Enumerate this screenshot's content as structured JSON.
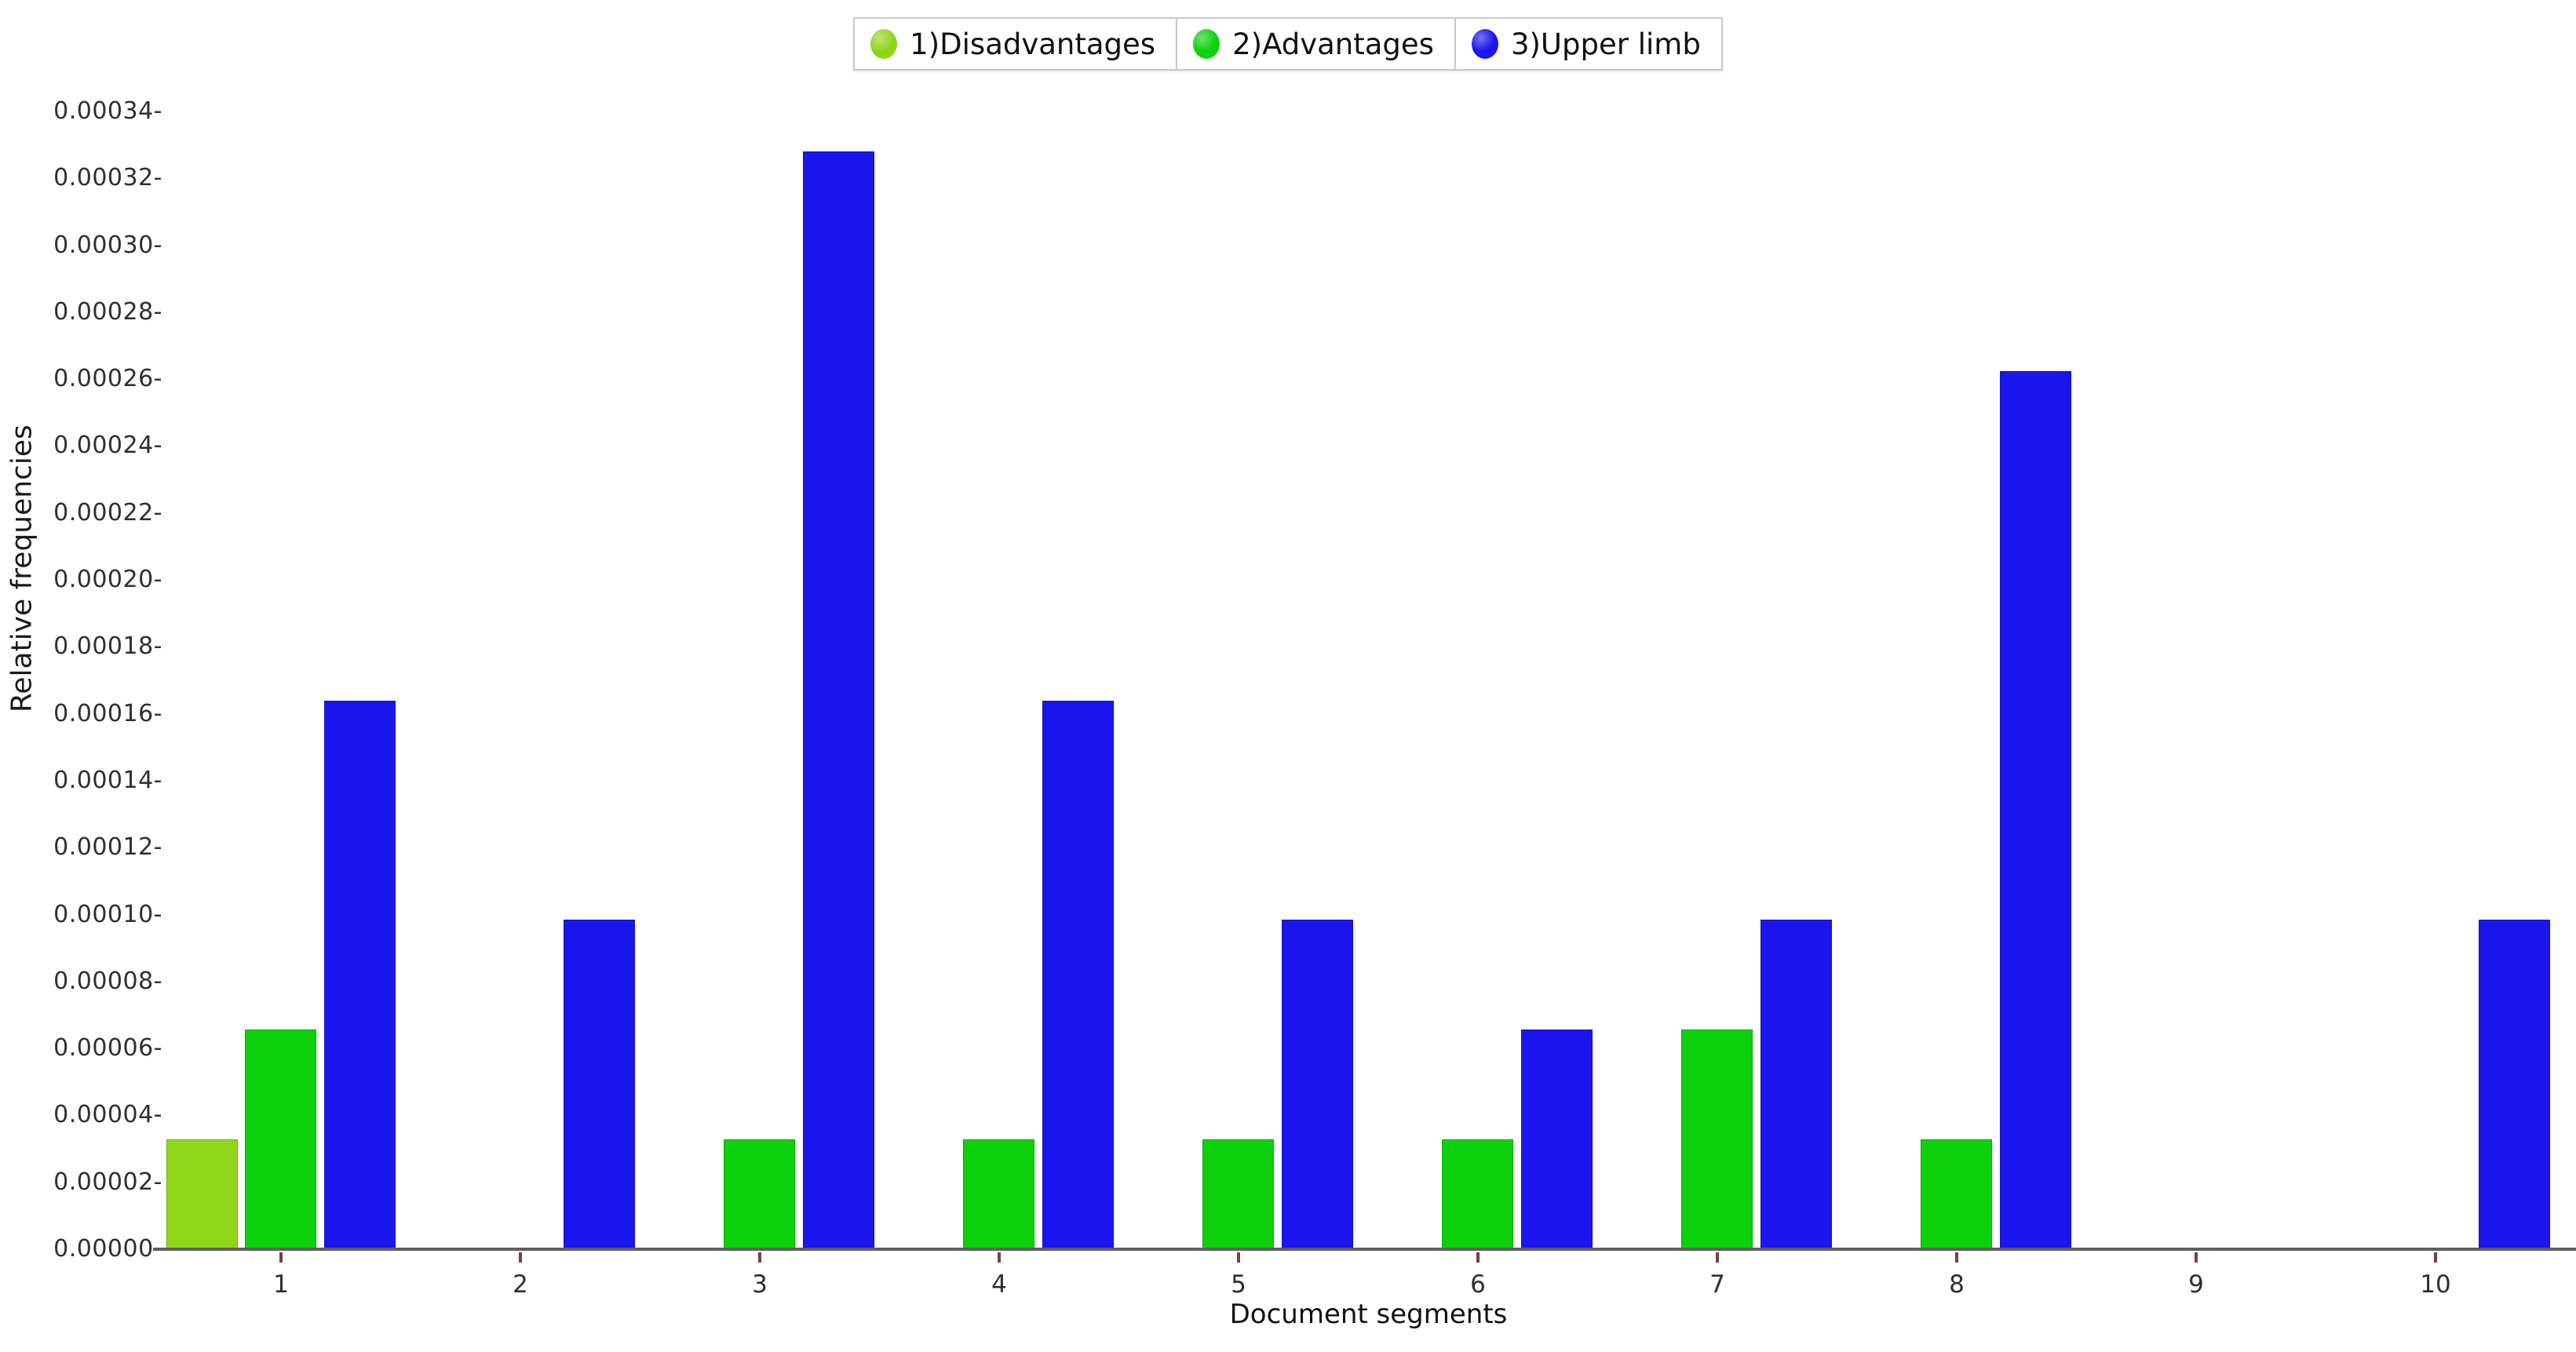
{
  "chart_data": {
    "type": "bar",
    "title": "",
    "xlabel": "Document segments",
    "ylabel": "Relative frequencies",
    "categories": [
      "1",
      "2",
      "3",
      "4",
      "5",
      "6",
      "7",
      "8",
      "9",
      "10"
    ],
    "series": [
      {
        "name": "1)Disadvantages",
        "color": "#8fd61a",
        "values": [
          3.28e-05,
          0,
          0,
          0,
          0,
          0,
          0,
          0,
          0,
          0
        ]
      },
      {
        "name": "2)Advantages",
        "color": "#0dd10d",
        "values": [
          6.56e-05,
          0,
          3.28e-05,
          3.28e-05,
          3.28e-05,
          3.28e-05,
          6.56e-05,
          3.28e-05,
          0,
          0
        ]
      },
      {
        "name": "3)Upper limb",
        "color": "#1b15ee",
        "values": [
          0.000164,
          9.84e-05,
          0.000328,
          0.000164,
          9.84e-05,
          6.56e-05,
          9.84e-05,
          0.0002624,
          0,
          9.84e-05
        ]
      }
    ],
    "ylim": [
      0,
      0.00034
    ],
    "ytick_step": 2e-05,
    "ytick_labels": [
      "0.00000-",
      "0.00002-",
      "0.00004-",
      "0.00006-",
      "0.00008-",
      "0.00010-",
      "0.00012-",
      "0.00014-",
      "0.00016-",
      "0.00018-",
      "0.00020-",
      "0.00022-",
      "0.00024-",
      "0.00026-",
      "0.00028-",
      "0.00030-",
      "0.00032-",
      "0.00034-"
    ],
    "legend_position": "top-center",
    "grid": false
  },
  "colors": {
    "axis_line": "#5f5f5f",
    "tick_mark": "#7b3b52",
    "text": "#2f2f2f"
  }
}
